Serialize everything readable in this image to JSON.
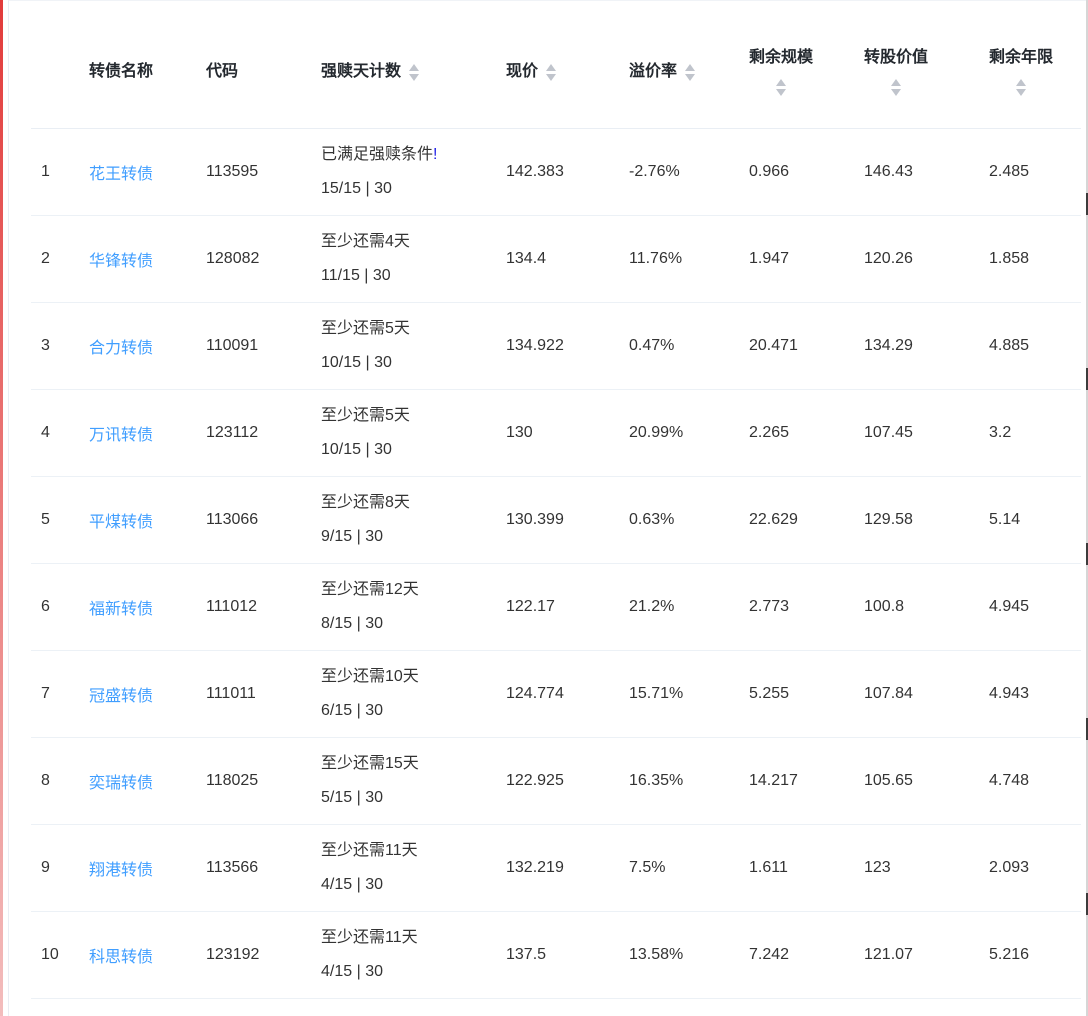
{
  "page": {
    "colors": {
      "link_blue": "#409eff",
      "sort_icon_gray": "#c0c4cc",
      "alert_mark_blue": "#2323e8",
      "divider": "#ecf1f6",
      "body_text": "#333333",
      "header_text": "#24292f",
      "left_edge_red": "#e23b3b"
    }
  },
  "table": {
    "columns": [
      {
        "key": "index",
        "label": "",
        "sortable": false
      },
      {
        "key": "name",
        "label": "转债名称",
        "sortable": false
      },
      {
        "key": "code",
        "label": "代码",
        "sortable": false
      },
      {
        "key": "redeem_count",
        "label": "强赎天计数",
        "sortable": true
      },
      {
        "key": "price",
        "label": "现价",
        "sortable": true
      },
      {
        "key": "premium",
        "label": "溢价率",
        "sortable": true
      },
      {
        "key": "remaining_size",
        "label": "剩余规模",
        "sortable": true
      },
      {
        "key": "conversion_value",
        "label": "转股价值",
        "sortable": true
      },
      {
        "key": "remaining_years",
        "label": "剩余年限",
        "sortable": true
      }
    ],
    "rows": [
      {
        "index": "1",
        "name": "花王转债",
        "code": "113595",
        "redeem_line1": "已满足强赎条件",
        "redeem_alert": "!",
        "redeem_line2": "15/15 | 30",
        "price": "142.383",
        "premium": "-2.76%",
        "remaining_size": "0.966",
        "conversion_value": "146.43",
        "remaining_years": "2.485"
      },
      {
        "index": "2",
        "name": "华锋转债",
        "code": "128082",
        "redeem_line1": "至少还需4天",
        "redeem_alert": "",
        "redeem_line2": "11/15 | 30",
        "price": "134.4",
        "premium": "11.76%",
        "remaining_size": "1.947",
        "conversion_value": "120.26",
        "remaining_years": "1.858"
      },
      {
        "index": "3",
        "name": "合力转债",
        "code": "110091",
        "redeem_line1": "至少还需5天",
        "redeem_alert": "",
        "redeem_line2": "10/15 | 30",
        "price": "134.922",
        "premium": "0.47%",
        "remaining_size": "20.471",
        "conversion_value": "134.29",
        "remaining_years": "4.885"
      },
      {
        "index": "4",
        "name": "万讯转债",
        "code": "123112",
        "redeem_line1": "至少还需5天",
        "redeem_alert": "",
        "redeem_line2": "10/15 | 30",
        "price": "130",
        "premium": "20.99%",
        "remaining_size": "2.265",
        "conversion_value": "107.45",
        "remaining_years": "3.2"
      },
      {
        "index": "5",
        "name": "平煤转债",
        "code": "113066",
        "redeem_line1": "至少还需8天",
        "redeem_alert": "",
        "redeem_line2": "9/15 | 30",
        "price": "130.399",
        "premium": "0.63%",
        "remaining_size": "22.629",
        "conversion_value": "129.58",
        "remaining_years": "5.14"
      },
      {
        "index": "6",
        "name": "福新转债",
        "code": "111012",
        "redeem_line1": "至少还需12天",
        "redeem_alert": "",
        "redeem_line2": "8/15 | 30",
        "price": "122.17",
        "premium": "21.2%",
        "remaining_size": "2.773",
        "conversion_value": "100.8",
        "remaining_years": "4.945"
      },
      {
        "index": "7",
        "name": "冠盛转债",
        "code": "111011",
        "redeem_line1": "至少还需10天",
        "redeem_alert": "",
        "redeem_line2": "6/15 | 30",
        "price": "124.774",
        "premium": "15.71%",
        "remaining_size": "5.255",
        "conversion_value": "107.84",
        "remaining_years": "4.943"
      },
      {
        "index": "8",
        "name": "奕瑞转债",
        "code": "118025",
        "redeem_line1": "至少还需15天",
        "redeem_alert": "",
        "redeem_line2": "5/15 | 30",
        "price": "122.925",
        "premium": "16.35%",
        "remaining_size": "14.217",
        "conversion_value": "105.65",
        "remaining_years": "4.748"
      },
      {
        "index": "9",
        "name": "翔港转债",
        "code": "113566",
        "redeem_line1": "至少还需11天",
        "redeem_alert": "",
        "redeem_line2": "4/15 | 30",
        "price": "132.219",
        "premium": "7.5%",
        "remaining_size": "1.611",
        "conversion_value": "123",
        "remaining_years": "2.093"
      },
      {
        "index": "10",
        "name": "科思转债",
        "code": "123192",
        "redeem_line1": "至少还需11天",
        "redeem_alert": "",
        "redeem_line2": "4/15 | 30",
        "price": "137.5",
        "premium": "13.58%",
        "remaining_size": "7.242",
        "conversion_value": "121.07",
        "remaining_years": "5.216"
      }
    ]
  }
}
